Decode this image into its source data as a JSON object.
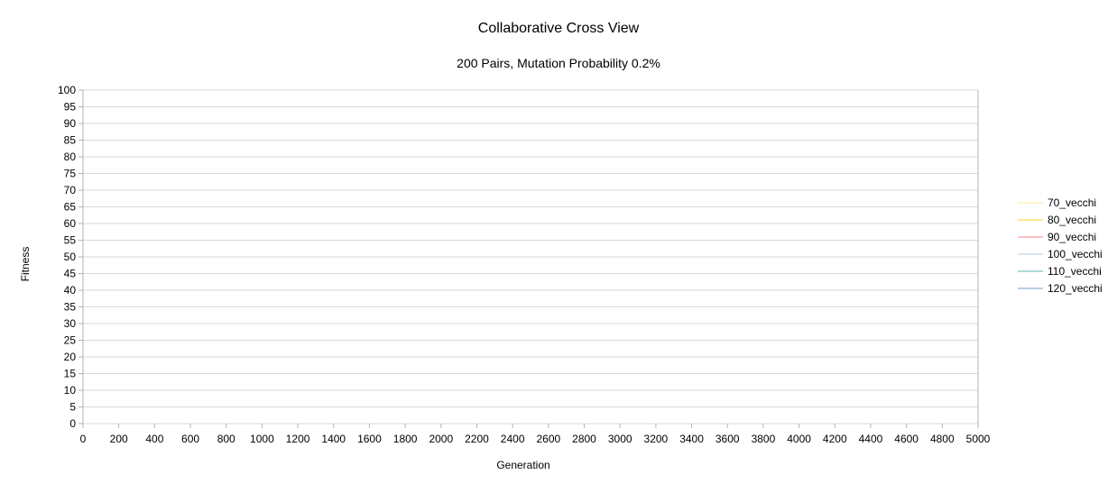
{
  "chart_data": {
    "type": "line",
    "title": "Collaborative Cross View",
    "subtitle": "200 Pairs, Mutation Probability 0.2%",
    "xlabel": "Generation",
    "ylabel": "Fitness",
    "xlim": [
      0,
      5000
    ],
    "ylim": [
      0,
      100
    ],
    "x_ticks": [
      0,
      200,
      400,
      600,
      800,
      1000,
      1200,
      1400,
      1600,
      1800,
      2000,
      2200,
      2400,
      2600,
      2800,
      3000,
      3200,
      3400,
      3600,
      3800,
      4000,
      4200,
      4400,
      4600,
      4800,
      5000
    ],
    "y_ticks": [
      0,
      5,
      10,
      15,
      20,
      25,
      30,
      35,
      40,
      45,
      50,
      55,
      60,
      65,
      70,
      75,
      80,
      85,
      90,
      95,
      100
    ],
    "grid": true,
    "legend_position": "right",
    "series": [
      {
        "name": "70_vecchi",
        "color": "#ffe994",
        "values": []
      },
      {
        "name": "80_vecchi",
        "color": "#ffd320",
        "values": []
      },
      {
        "name": "90_vecchi",
        "color": "#ff8080",
        "values": []
      },
      {
        "name": "100_vecchi",
        "color": "#b4c7dc",
        "values": []
      },
      {
        "name": "110_vecchi",
        "color": "#5eb3ad",
        "values": []
      },
      {
        "name": "120_vecchi",
        "color": "#729fcf",
        "values": []
      }
    ]
  }
}
